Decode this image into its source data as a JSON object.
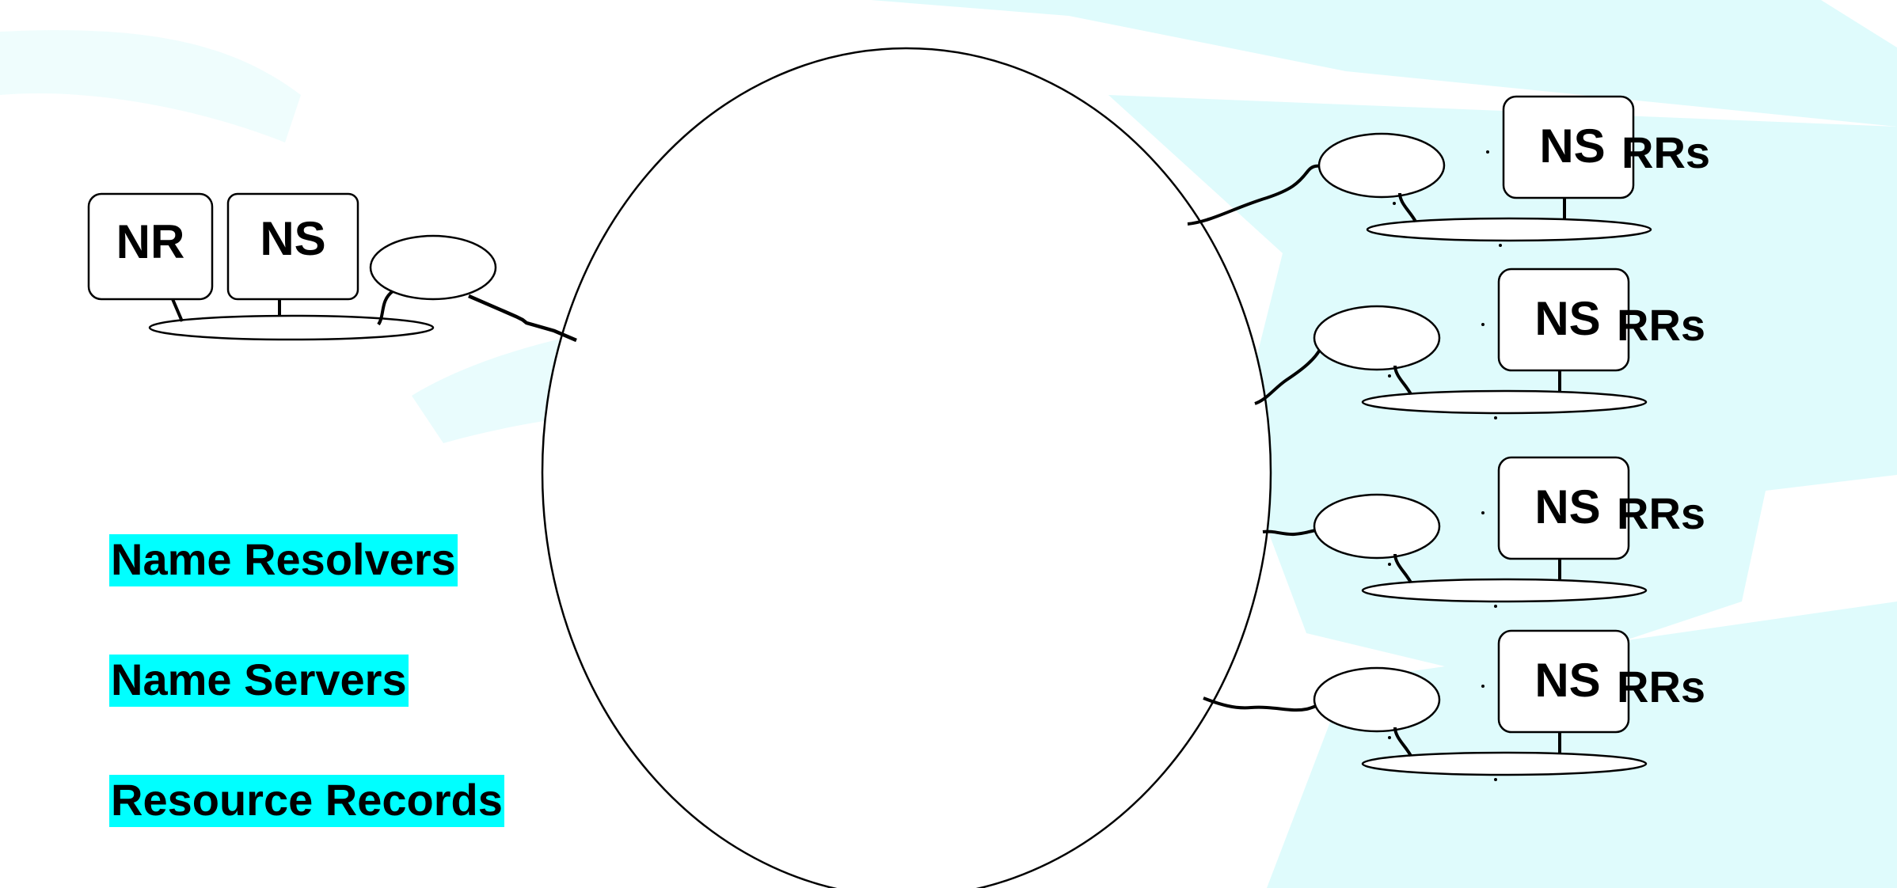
{
  "colors": {
    "background": "#ffffff",
    "watermark": "#dffbfc",
    "legend_highlight": "#00ffff",
    "line": "#000000"
  },
  "left_site": {
    "resolver_label": "NR",
    "server_label": "NS"
  },
  "remote_sites": [
    {
      "server_label": "NS",
      "records_label": "RRs"
    },
    {
      "server_label": "NS",
      "records_label": "RRs"
    },
    {
      "server_label": "NS",
      "records_label": "RRs"
    },
    {
      "server_label": "NS",
      "records_label": "RRs"
    }
  ],
  "legend": [
    {
      "label": "Name Resolvers"
    },
    {
      "label": "Name Servers"
    },
    {
      "label": "Resource Records"
    }
  ]
}
